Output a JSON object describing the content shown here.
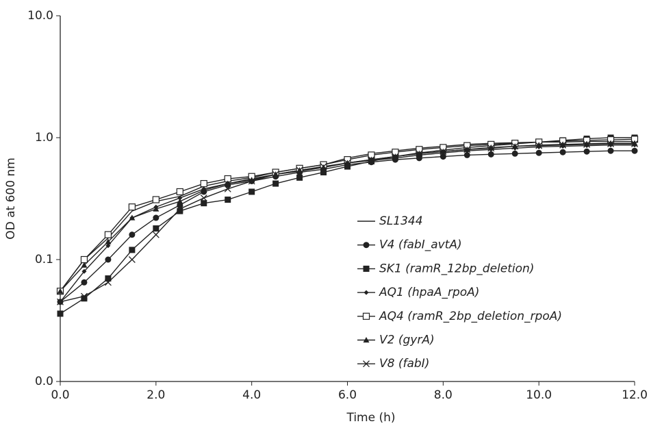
{
  "chart_data": {
    "type": "line",
    "x_label": "Time (h)",
    "y_label": "OD at 600 nm",
    "yscale": "log",
    "grid": false,
    "legend": "center-right",
    "xlim": [
      0,
      12
    ],
    "xticks": [
      {
        "value": 0,
        "label": "0.0"
      },
      {
        "value": 2,
        "label": "2.0"
      },
      {
        "value": 4,
        "label": "4.0"
      },
      {
        "value": 6,
        "label": "6.0"
      },
      {
        "value": 8,
        "label": "8.0"
      },
      {
        "value": 10,
        "label": "10.0"
      },
      {
        "value": 12,
        "label": "12.0"
      }
    ],
    "ylim": [
      0.01,
      10
    ],
    "yticks": [
      {
        "value": 0.01,
        "label": "0.0"
      },
      {
        "value": 0.1,
        "label": "0.1"
      },
      {
        "value": 1,
        "label": "1.0"
      },
      {
        "value": 10,
        "label": "10.0"
      }
    ],
    "x": [
      0,
      0.5,
      1,
      1.5,
      2,
      2.5,
      3,
      3.5,
      4,
      4.5,
      5,
      5.5,
      6,
      6.5,
      7,
      7.5,
      8,
      8.5,
      9,
      9.5,
      10,
      10.5,
      11,
      11.5,
      12
    ],
    "series": [
      {
        "name": "SL1344",
        "color": "#222222",
        "marker": "none",
        "values": [
          0.055,
          0.1,
          0.15,
          0.25,
          0.3,
          0.33,
          0.4,
          0.44,
          0.47,
          0.52,
          0.56,
          0.6,
          0.68,
          0.74,
          0.78,
          0.82,
          0.85,
          0.88,
          0.9,
          0.91,
          0.92,
          0.92,
          0.93,
          0.93,
          0.93
        ]
      },
      {
        "name": "V4 (fabI_avtA)",
        "color": "#222222",
        "marker": "circle",
        "values": [
          0.045,
          0.065,
          0.1,
          0.16,
          0.22,
          0.28,
          0.36,
          0.41,
          0.44,
          0.48,
          0.52,
          0.55,
          0.6,
          0.63,
          0.66,
          0.68,
          0.7,
          0.72,
          0.73,
          0.74,
          0.75,
          0.76,
          0.77,
          0.78,
          0.78
        ]
      },
      {
        "name": "SK1 (ramR_12bp_deletion)",
        "color": "#222222",
        "marker": "square",
        "values": [
          0.036,
          0.048,
          0.07,
          0.12,
          0.18,
          0.25,
          0.29,
          0.31,
          0.36,
          0.42,
          0.47,
          0.52,
          0.58,
          0.64,
          0.7,
          0.75,
          0.79,
          0.83,
          0.86,
          0.89,
          0.92,
          0.95,
          0.98,
          1.0,
          1.0
        ]
      },
      {
        "name": "AQ1 (hpaA_rpoA)",
        "color": "#222222",
        "marker": "diamond",
        "values": [
          0.045,
          0.08,
          0.13,
          0.22,
          0.27,
          0.32,
          0.38,
          0.42,
          0.46,
          0.5,
          0.53,
          0.57,
          0.62,
          0.65,
          0.68,
          0.72,
          0.75,
          0.78,
          0.8,
          0.82,
          0.84,
          0.85,
          0.86,
          0.87,
          0.87
        ]
      },
      {
        "name": "AQ4 (ramR_2bp_deletion_rpoA)",
        "color": "#222222",
        "marker": "open-square",
        "values": [
          0.055,
          0.1,
          0.16,
          0.27,
          0.31,
          0.36,
          0.42,
          0.46,
          0.48,
          0.52,
          0.56,
          0.6,
          0.66,
          0.72,
          0.76,
          0.8,
          0.83,
          0.86,
          0.88,
          0.9,
          0.92,
          0.94,
          0.95,
          0.96,
          0.97
        ]
      },
      {
        "name": "V2 (gyrA)",
        "color": "#222222",
        "marker": "triangle",
        "values": [
          0.055,
          0.09,
          0.14,
          0.22,
          0.26,
          0.3,
          0.37,
          0.42,
          0.45,
          0.5,
          0.54,
          0.57,
          0.62,
          0.66,
          0.7,
          0.74,
          0.77,
          0.8,
          0.83,
          0.85,
          0.87,
          0.88,
          0.89,
          0.9,
          0.9
        ]
      },
      {
        "name": "V8 (fabI)",
        "color": "#222222",
        "marker": "x",
        "values": [
          0.045,
          0.05,
          0.065,
          0.1,
          0.16,
          0.26,
          0.32,
          0.38,
          0.44,
          0.5,
          0.54,
          0.58,
          0.62,
          0.66,
          0.7,
          0.74,
          0.77,
          0.8,
          0.82,
          0.85,
          0.86,
          0.87,
          0.88,
          0.89,
          0.89
        ]
      }
    ]
  }
}
